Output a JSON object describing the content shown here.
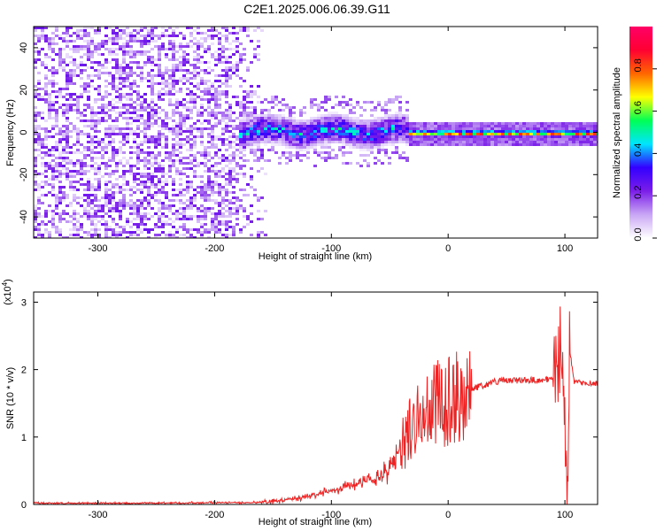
{
  "title": "C2E1.2025.006.06.39.G11",
  "chart_data": [
    {
      "type": "heatmap",
      "xlabel": "Height of straight line (km)",
      "ylabel": "Frequency (Hz)",
      "xlim": [
        -355,
        128
      ],
      "ylim": [
        -50,
        50
      ],
      "xticks": [
        -300,
        -200,
        -100,
        0,
        100
      ],
      "yticks": [
        -40,
        -20,
        0,
        20,
        40
      ],
      "colorbar": {
        "label": "Normalized spectral amplitude",
        "range": [
          0,
          1
        ],
        "ticks": [
          0.0,
          0.2,
          0.4,
          0.6,
          0.8
        ],
        "tick_labels": [
          "0.0",
          "0.2",
          "0.4",
          "0.6",
          "0.8"
        ],
        "colormap": [
          "#ffffff",
          "#c9a6f5",
          "#7b1ee8",
          "#3300ff",
          "#00e5ff",
          "#00ff55",
          "#ffff00",
          "#ff6600",
          "#ff0033",
          "#ff0066"
        ]
      },
      "regions": [
        {
          "x_range": [
            -355,
            -155
          ],
          "description": "broadband noise, amplitude 0.05-0.25"
        },
        {
          "x_range": [
            -180,
            -35
          ],
          "center_freq": 1,
          "spread": 8,
          "amplitude": 0.4
        },
        {
          "x_range": [
            -35,
            128
          ],
          "center_freq": 0,
          "spread": 2,
          "amplitude": 0.8
        }
      ]
    },
    {
      "type": "line",
      "xlabel": "Height of straight line (km)",
      "ylabel": "SNR (10 * v/v)",
      "y_multiplier": "(x10",
      "y_exponent": "4",
      "y_multiplier_close": ")",
      "xlim": [
        -355,
        128
      ],
      "ylim": [
        0,
        3.15
      ],
      "xticks": [
        -300,
        -200,
        -100,
        0,
        100
      ],
      "yticks": [
        0,
        1,
        2,
        3
      ],
      "color": "#ee2222",
      "series": [
        {
          "x": [
            -355,
            -250,
            -160,
            -140,
            -120,
            -100,
            -80,
            -60,
            -50,
            -40,
            -30,
            -20,
            -10,
            0,
            10,
            20,
            30,
            40,
            50,
            60,
            70,
            80,
            90,
            94,
            97,
            100,
            102,
            104,
            108,
            115,
            128
          ],
          "values": [
            0.02,
            0.02,
            0.03,
            0.06,
            0.12,
            0.2,
            0.3,
            0.38,
            0.55,
            0.85,
            1.2,
            1.4,
            1.5,
            1.57,
            1.65,
            1.72,
            1.76,
            1.82,
            1.84,
            1.84,
            1.84,
            1.85,
            1.85,
            2.1,
            2.6,
            1.3,
            0.1,
            2.3,
            1.82,
            1.8,
            1.79
          ]
        }
      ]
    }
  ]
}
